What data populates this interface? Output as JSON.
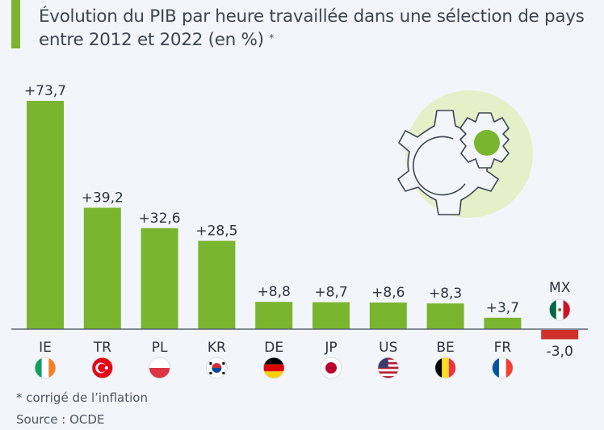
{
  "title": "Évolution du PIB par heure travaillée dans une sélection de pays entre 2012 et 2022 (en %)",
  "title_mark": "*",
  "footnote": "* corrigé de l’inflation",
  "source": "Source : OCDE",
  "colors": {
    "positive": "#7ab530",
    "negative": "#d0302a",
    "accent": "#7ab530",
    "text": "#2b3440"
  },
  "chart_data": {
    "type": "bar",
    "title": "Évolution du PIB par heure travaillée dans une sélection de pays entre 2012 et 2022 (en %)",
    "xlabel": "",
    "ylabel": "",
    "categories": [
      "IE",
      "TR",
      "PL",
      "KR",
      "DE",
      "JP",
      "US",
      "BE",
      "FR",
      "MX"
    ],
    "values": [
      73.7,
      39.2,
      32.6,
      28.5,
      8.8,
      8.7,
      8.6,
      8.3,
      3.7,
      -3.0
    ],
    "labels": [
      "+73,7",
      "+39,2",
      "+32,6",
      "+28,5",
      "+8,8",
      "+8,7",
      "+8,6",
      "+8,3",
      "+3,7",
      "-3,0"
    ],
    "flags": [
      "ireland-flag",
      "turkey-flag",
      "poland-flag",
      "south-korea-flag",
      "germany-flag",
      "japan-flag",
      "usa-flag",
      "belgium-flag",
      "france-flag",
      "mexico-flag"
    ],
    "ylim": [
      -3.0,
      73.7
    ],
    "grid": false,
    "legend": "none"
  }
}
